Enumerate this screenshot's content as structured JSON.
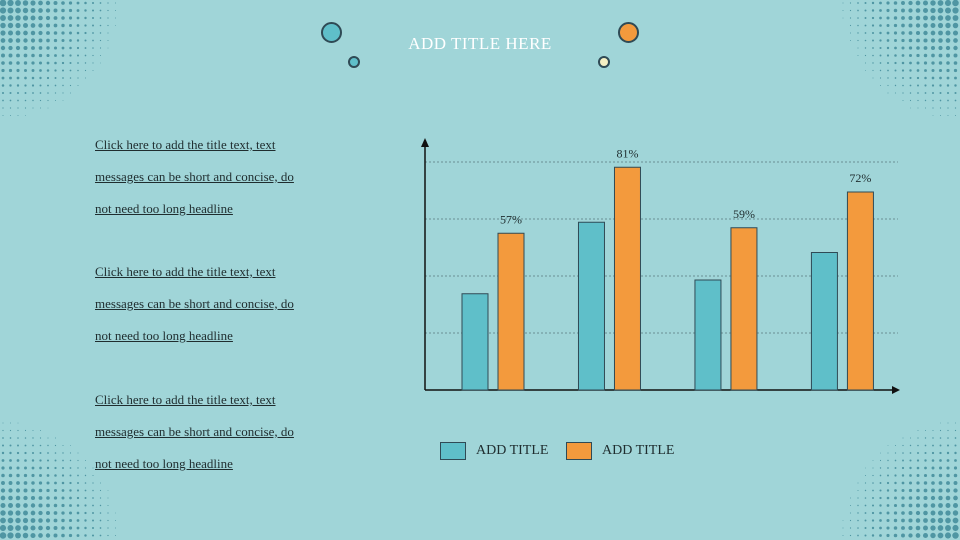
{
  "slide": {
    "title": "ADD TITLE HERE"
  },
  "text_blocks": [
    {
      "lines": [
        "Click here to add the title text, text",
        "messages can be short and concise, do",
        "not need too long headline"
      ]
    },
    {
      "lines": [
        "Click here to add the title text, text",
        "messages can be short and concise, do",
        "not need too long headline"
      ]
    },
    {
      "lines": [
        "Click here to add the title text, text",
        "messages can be short and concise, do",
        "not need too long headline"
      ]
    }
  ],
  "colors": {
    "background": "#a0d5d8",
    "series_1": "#5fbfc9",
    "series_2": "#f39a3d",
    "dots": "#4f96a3",
    "outline": "#2f4a55"
  },
  "chart_data": {
    "type": "bar",
    "categories": [
      "",
      "",
      "",
      ""
    ],
    "series": [
      {
        "name": "ADD TITLE",
        "color": "#5fbfc9",
        "values": [
          35,
          61,
          40,
          50
        ]
      },
      {
        "name": "ADD TITLE",
        "color": "#f39a3d",
        "values": [
          57,
          81,
          59,
          72
        ],
        "labels": [
          "57%",
          "81%",
          "59%",
          "72%"
        ]
      }
    ],
    "ylim": [
      0,
      100
    ],
    "grid": true,
    "legend": "bottom"
  }
}
